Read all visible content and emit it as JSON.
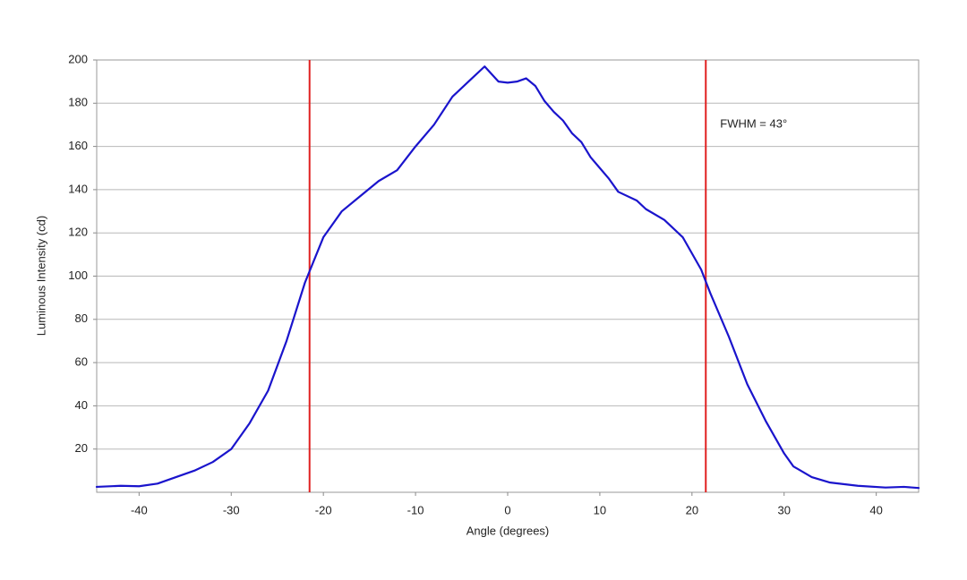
{
  "chart_data": {
    "type": "line",
    "x_label": "Angle (degrees)",
    "y_label": "Luminous Intensity (cd)",
    "annotation": "FWHM = 43°",
    "x": [
      -44.6,
      -42,
      -40,
      -38,
      -36,
      -34,
      -32,
      -30,
      -28,
      -26,
      -24,
      -22,
      -20,
      -18,
      -16,
      -14,
      -12,
      -10,
      -8,
      -6,
      -4,
      -2.5,
      -1,
      0,
      1,
      2,
      3,
      4,
      5,
      6,
      7,
      8,
      9,
      10,
      11,
      12,
      14,
      15,
      17,
      19,
      21,
      22,
      24,
      26,
      28,
      30,
      31,
      33,
      35,
      38,
      41,
      43,
      44.6
    ],
    "series": [
      {
        "color": "#1a14cc",
        "values": [
          2.5,
          3,
          2.8,
          4,
          7,
          10,
          14,
          20,
          32,
          47,
          70,
          97,
          118,
          130,
          137,
          144,
          149,
          160,
          170,
          183,
          191,
          197,
          190,
          189.5,
          190,
          191.5,
          188,
          181,
          176,
          172,
          166,
          162,
          155,
          150,
          145,
          139,
          135,
          131,
          126,
          118,
          103,
          92,
          72,
          50,
          33,
          18,
          12,
          7,
          4.5,
          3,
          2.2,
          2.5,
          2
        ]
      }
    ],
    "vlines": [
      -21.5,
      21.5
    ],
    "vline_color": "#e02020",
    "xlim": [
      -44.6,
      44.6
    ],
    "ylim": [
      0,
      200
    ],
    "xticks": [
      -40,
      -30,
      -20,
      -10,
      0,
      10,
      20,
      30,
      40
    ],
    "yticks": [
      20,
      40,
      60,
      80,
      100,
      120,
      140,
      160,
      180,
      200
    ],
    "grid": true
  }
}
